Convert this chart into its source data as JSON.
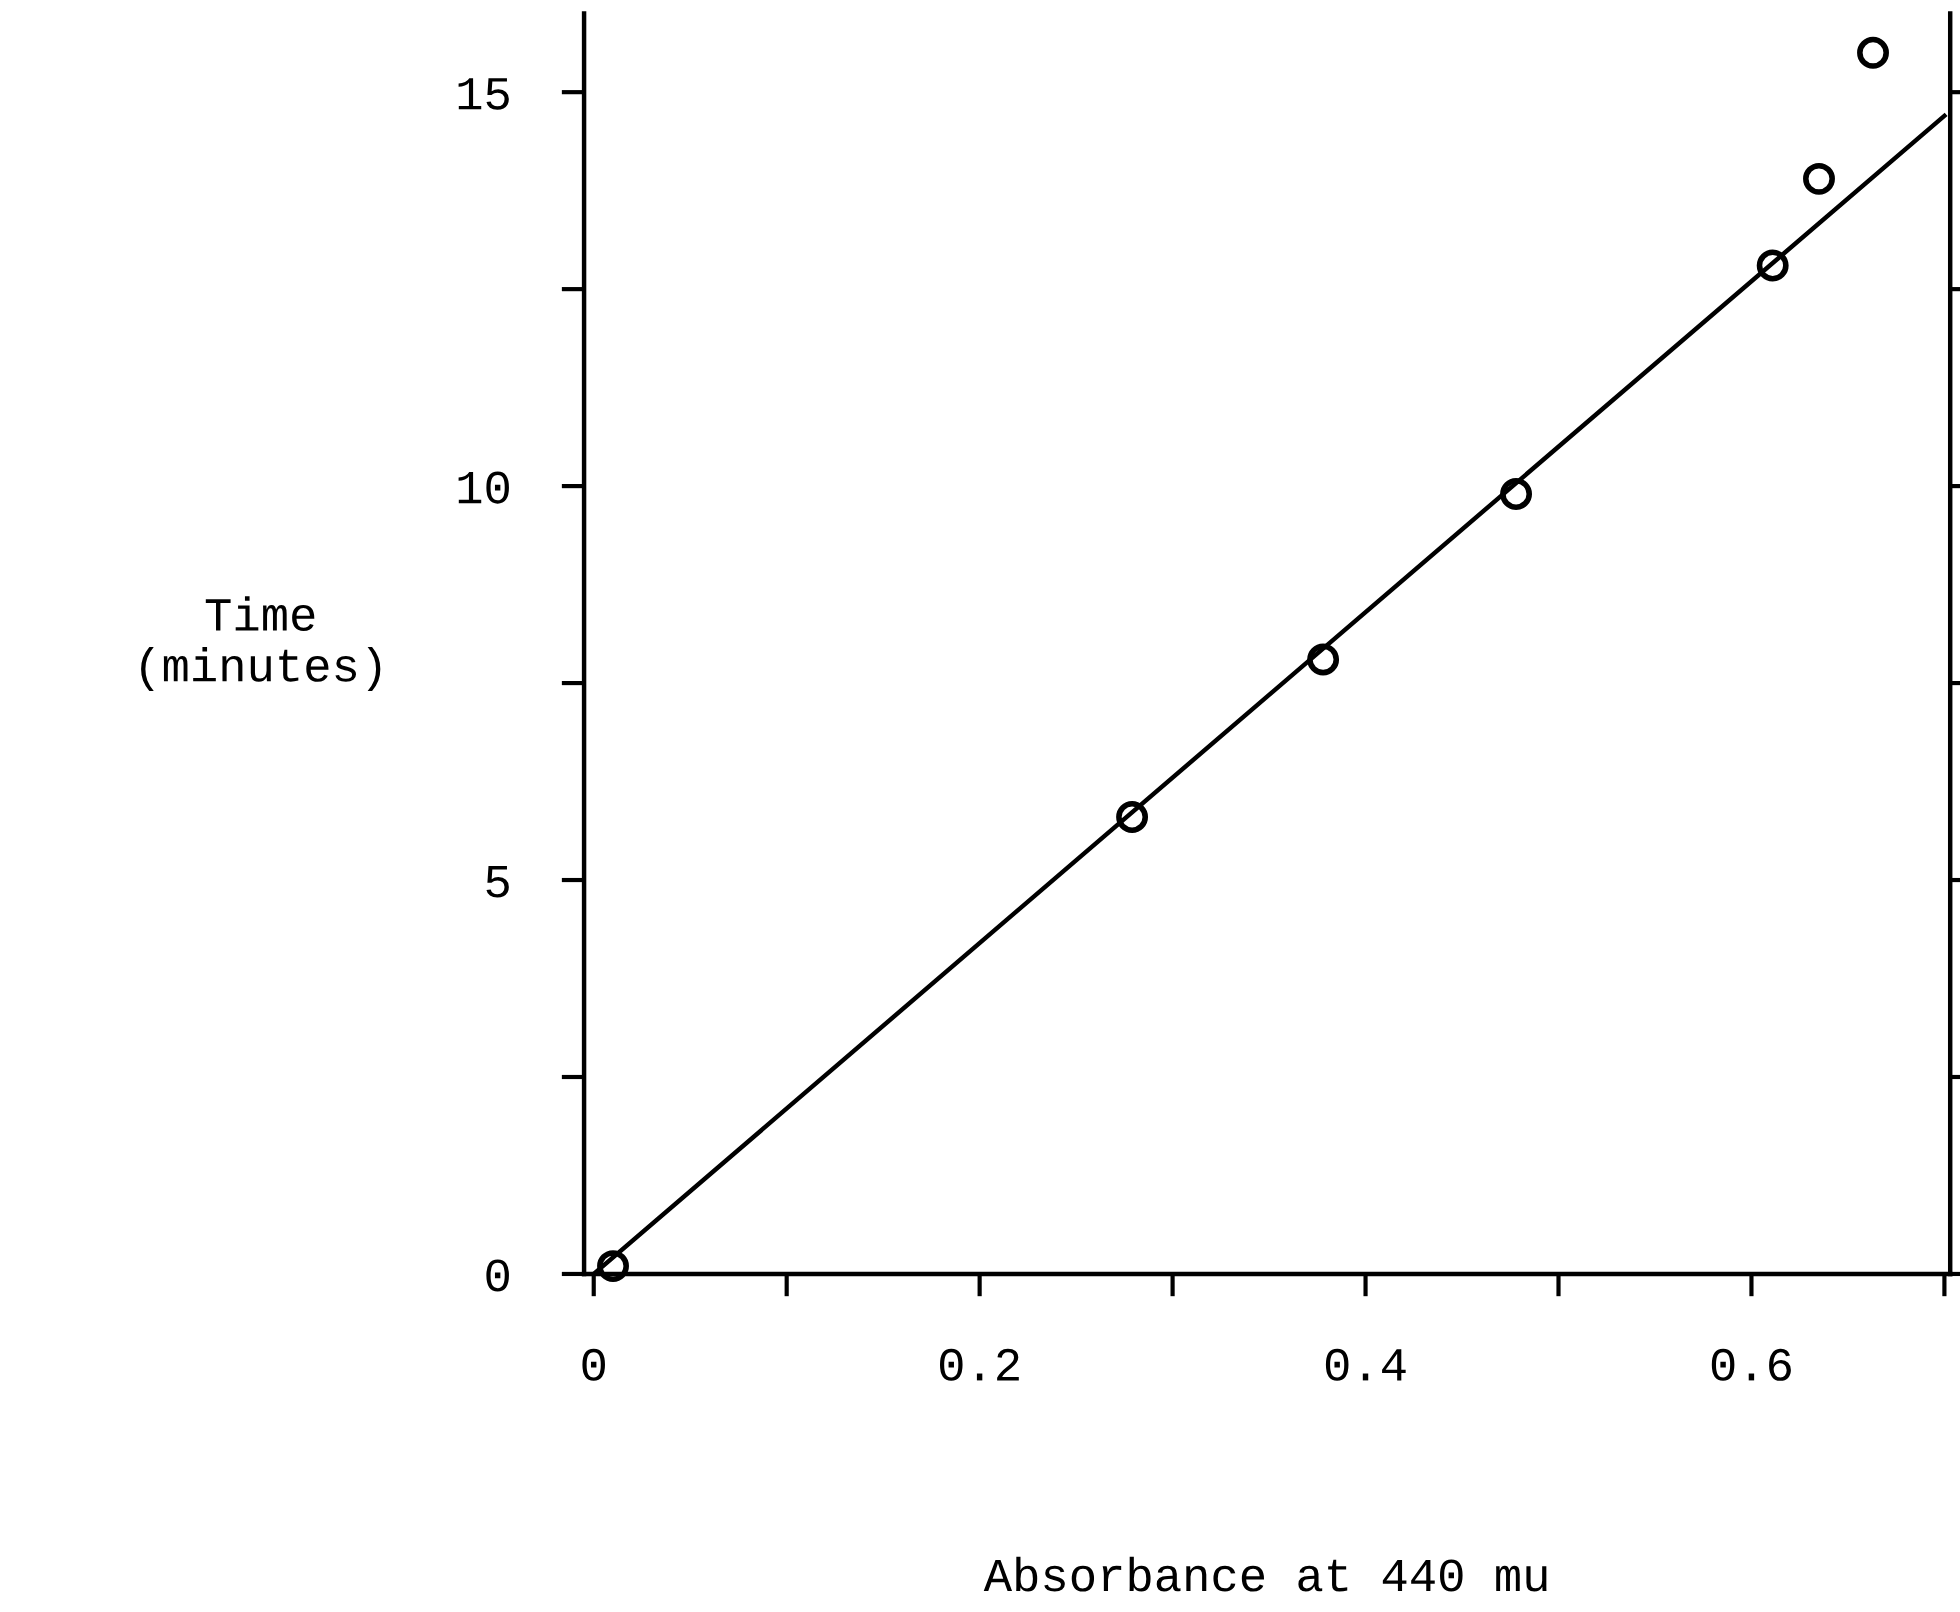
{
  "chart_data": {
    "type": "scatter",
    "xlabel": "Absorbance at 440 mu",
    "ylabel": "Time\n(minutes)",
    "xlim": [
      -0.005,
      0.703
    ],
    "ylim": [
      0,
      16
    ],
    "xticks": [
      {
        "value": 0,
        "label": "0"
      },
      {
        "value": 0.1,
        "label": null
      },
      0.2,
      {
        "value": 0.3,
        "label": null
      },
      0.4,
      {
        "value": 0.5,
        "label": null
      },
      0.6,
      {
        "value": 0.7,
        "label": null
      }
    ],
    "yticks": [
      0,
      {
        "value": 2.5,
        "label": null
      },
      5,
      {
        "value": 7.5,
        "label": null
      },
      10,
      {
        "value": 12.5,
        "label": null
      },
      15
    ],
    "grid": false,
    "legend": false,
    "series": [
      {
        "color": "#000000",
        "marker": "circle",
        "x": [
          0.01,
          0.279,
          0.378,
          0.478,
          0.611,
          0.635,
          0.663
        ],
        "values": [
          0.1,
          5.8,
          7.8,
          9.9,
          12.8,
          13.9,
          15.5
        ]
      },
      {
        "type": "line",
        "color": "#000000",
        "marker": "none",
        "line_style": "solid",
        "x": [
          0,
          0.7
        ],
        "values": [
          0,
          14.7
        ]
      }
    ]
  }
}
